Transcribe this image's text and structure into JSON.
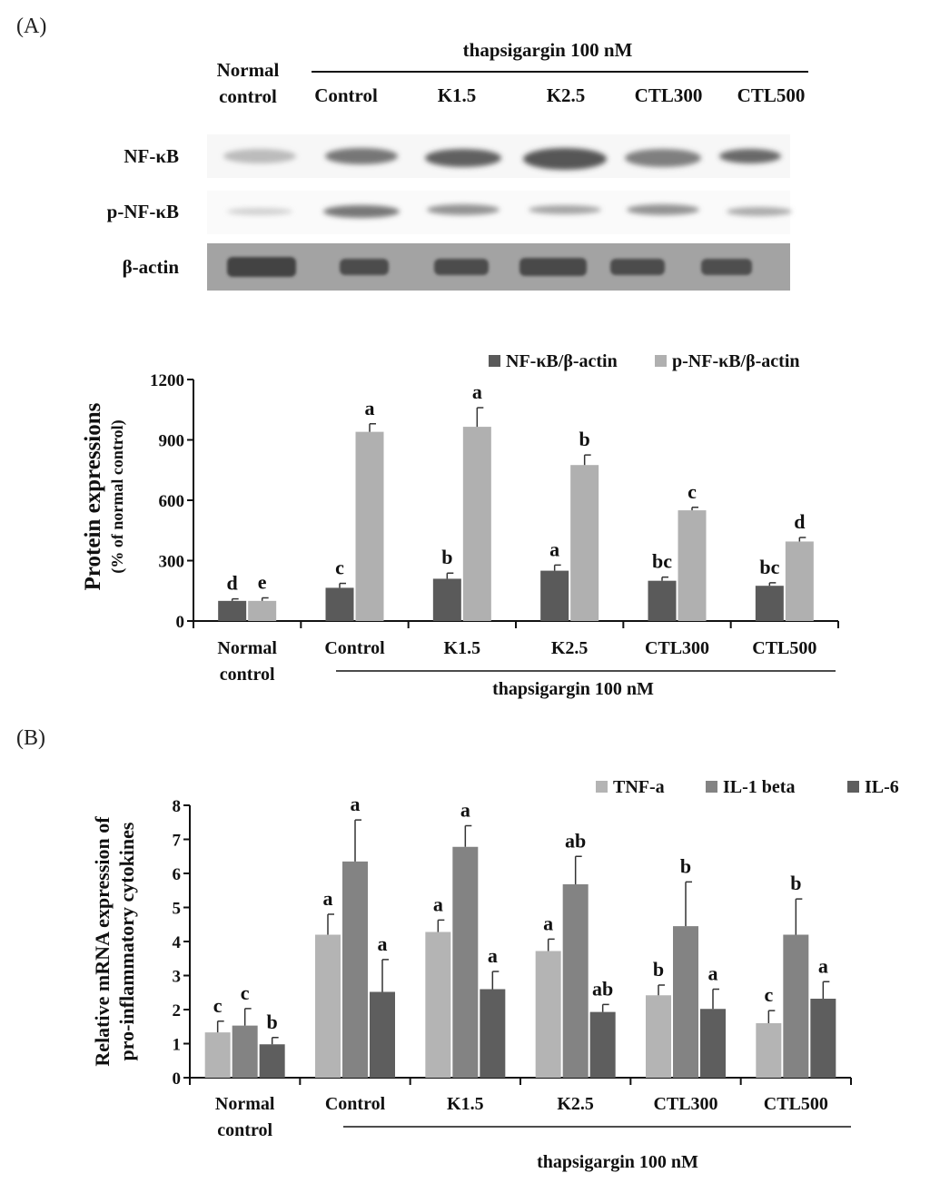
{
  "panel_a": {
    "label": "(A)",
    "blot": {
      "treatment_label": "thapsigargin 100 nM",
      "normal_control_line1": "Normal",
      "normal_control_line2": "control",
      "lane_labels": [
        "Control",
        "K1.5",
        "K2.5",
        "CTL300",
        "CTL500"
      ],
      "row_labels": [
        "NF-κB",
        "p-NF-κB",
        "β-actin"
      ]
    }
  },
  "panel_b": {
    "label": "(B)"
  },
  "chart_data": [
    {
      "type": "bar",
      "ylabel": "Protein expressions",
      "ylabel_sub": "(% of normal control)",
      "ylim": [
        0,
        1200
      ],
      "yticks": [
        0,
        300,
        600,
        900,
        1200
      ],
      "categories": [
        "Normal control",
        "Control",
        "K1.5",
        "K2.5",
        "CTL300",
        "CTL500"
      ],
      "category_lines": [
        [
          "Normal",
          "control"
        ],
        [
          "Control"
        ],
        [
          "K1.5"
        ],
        [
          "K2.5"
        ],
        [
          "CTL300"
        ],
        [
          "CTL500"
        ]
      ],
      "group_label": "thapsigargin 100 nM",
      "legend_position": "top-right",
      "series": [
        {
          "name": "NF-κB/β-actin",
          "color": "#5a5a5a",
          "values": [
            100,
            165,
            210,
            250,
            200,
            175
          ],
          "errors": [
            10,
            22,
            28,
            28,
            18,
            15
          ],
          "labels": [
            "d",
            "c",
            "b",
            "a",
            "bc",
            "bc"
          ]
        },
        {
          "name": "p-NF-κB/β-actin",
          "color": "#b0b0b0",
          "values": [
            100,
            940,
            965,
            775,
            550,
            395
          ],
          "errors": [
            15,
            40,
            95,
            50,
            15,
            20
          ],
          "labels": [
            "e",
            "a",
            "a",
            "b",
            "c",
            "d"
          ]
        }
      ]
    },
    {
      "type": "bar",
      "ylabel": "Relative mRNA expression of",
      "ylabel_sub": "pro-inflammatory cytokines",
      "ylim": [
        0,
        8
      ],
      "yticks": [
        0,
        1,
        2,
        3,
        4,
        5,
        6,
        7,
        8
      ],
      "categories": [
        "Normal control",
        "Control",
        "K1.5",
        "K2.5",
        "CTL300",
        "CTL500"
      ],
      "category_lines": [
        [
          "Normal",
          "control"
        ],
        [
          "Control"
        ],
        [
          "K1.5"
        ],
        [
          "K2.5"
        ],
        [
          "CTL300"
        ],
        [
          "CTL500"
        ]
      ],
      "group_label": "thapsigargin 100 nM",
      "legend_position": "top-right",
      "series": [
        {
          "name": "TNF-a",
          "color": "#b4b4b4",
          "values": [
            1.33,
            4.2,
            4.28,
            3.72,
            2.42,
            1.6
          ],
          "errors": [
            0.33,
            0.6,
            0.35,
            0.35,
            0.3,
            0.37
          ],
          "labels": [
            "c",
            "a",
            "a",
            "a",
            "b",
            "c"
          ]
        },
        {
          "name": "IL-1 beta",
          "color": "#838383",
          "values": [
            1.53,
            6.35,
            6.78,
            5.68,
            4.45,
            4.2
          ],
          "errors": [
            0.5,
            1.22,
            0.62,
            0.82,
            1.3,
            1.05
          ],
          "labels": [
            "c",
            "a",
            "a",
            "ab",
            "b",
            "b"
          ]
        },
        {
          "name": "IL-6",
          "color": "#5e5e5e",
          "values": [
            0.98,
            2.52,
            2.6,
            1.93,
            2.02,
            2.32
          ],
          "errors": [
            0.2,
            0.95,
            0.52,
            0.22,
            0.58,
            0.5
          ],
          "labels": [
            "b",
            "a",
            "a",
            "ab",
            "a",
            "a"
          ]
        }
      ]
    }
  ]
}
